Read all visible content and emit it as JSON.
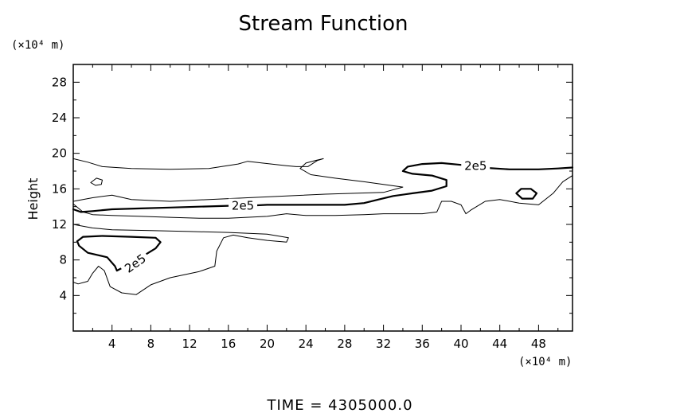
{
  "chart_data": {
    "type": "contour",
    "title": "Stream Function",
    "xlabel": "",
    "ylabel": "Height",
    "x_unit": "(×10⁴ m)",
    "y_unit": "(×10⁴ m)",
    "xlim": [
      0,
      51.5
    ],
    "ylim": [
      0,
      30
    ],
    "x_ticks": [
      4,
      8,
      12,
      16,
      20,
      24,
      28,
      32,
      36,
      40,
      44,
      48
    ],
    "y_ticks": [
      4,
      8,
      12,
      16,
      20,
      24,
      28
    ],
    "grid": false,
    "contour_labels": [
      "2e5",
      "2e5",
      "2e5"
    ],
    "footer": "TIME  =  4305000.0",
    "contours": [
      {
        "level": "thin",
        "width": 1,
        "closed": false,
        "points": [
          [
            0,
            19.4
          ],
          [
            1.5,
            19
          ],
          [
            3,
            18.5
          ],
          [
            6,
            18.3
          ],
          [
            10,
            18.2
          ],
          [
            14,
            18.3
          ],
          [
            17,
            18.8
          ],
          [
            18,
            19.1
          ],
          [
            19.5,
            18.9
          ],
          [
            22,
            18.6
          ],
          [
            23,
            18.5
          ],
          [
            24.2,
            18.5
          ],
          [
            25.2,
            19.2
          ],
          [
            25.8,
            19.4
          ],
          [
            25,
            19.2
          ],
          [
            24,
            18.9
          ],
          [
            23.4,
            18.3
          ],
          [
            24.5,
            17.6
          ],
          [
            27,
            17.2
          ],
          [
            30,
            16.8
          ],
          [
            32,
            16.5
          ],
          [
            34,
            16.2
          ],
          [
            32,
            15.6
          ],
          [
            29,
            15.5
          ],
          [
            26,
            15.4
          ],
          [
            22,
            15.2
          ],
          [
            18,
            15
          ],
          [
            14,
            14.8
          ],
          [
            10,
            14.6
          ],
          [
            6,
            14.8
          ],
          [
            4,
            15.3
          ],
          [
            2,
            15
          ],
          [
            0,
            14.6
          ]
        ]
      },
      {
        "level": "thin",
        "width": 1,
        "closed": true,
        "points": [
          [
            1.8,
            16.7
          ],
          [
            2.4,
            17.2
          ],
          [
            3,
            17
          ],
          [
            2.9,
            16.5
          ],
          [
            2.3,
            16.4
          ],
          [
            1.8,
            16.7
          ]
        ]
      },
      {
        "level": "thick",
        "width": 2.2,
        "closed": false,
        "points": [
          [
            0,
            13.7
          ],
          [
            0.8,
            13.4
          ],
          [
            2,
            13.5
          ],
          [
            4,
            13.7
          ],
          [
            7,
            13.8
          ],
          [
            10,
            13.9
          ],
          [
            13,
            14
          ],
          [
            16,
            14.1
          ],
          [
            18,
            14.1
          ],
          [
            20,
            14.2
          ],
          [
            22,
            14.2
          ],
          [
            25,
            14.2
          ],
          [
            28,
            14.2
          ],
          [
            30,
            14.4
          ],
          [
            31.5,
            14.8
          ],
          [
            33,
            15.2
          ],
          [
            35,
            15.5
          ],
          [
            37,
            15.8
          ],
          [
            38.5,
            16.3
          ],
          [
            38.5,
            17
          ],
          [
            37,
            17.5
          ],
          [
            35,
            17.7
          ],
          [
            34,
            18
          ],
          [
            34.5,
            18.5
          ],
          [
            36,
            18.8
          ],
          [
            38,
            18.9
          ],
          [
            40,
            18.7
          ],
          [
            42,
            18.4
          ],
          [
            45,
            18.2
          ],
          [
            48,
            18.2
          ],
          [
            50,
            18.3
          ],
          [
            51.5,
            18.4
          ]
        ]
      },
      {
        "level": "thick",
        "width": 2.2,
        "closed": true,
        "points": [
          [
            45.7,
            15.5
          ],
          [
            46.2,
            16
          ],
          [
            47.2,
            16
          ],
          [
            47.8,
            15.5
          ],
          [
            47.4,
            14.9
          ],
          [
            46.3,
            14.9
          ],
          [
            45.7,
            15.5
          ]
        ]
      },
      {
        "level": "thin",
        "width": 1,
        "closed": false,
        "points": [
          [
            0,
            14.3
          ],
          [
            1,
            13.4
          ],
          [
            2,
            13.1
          ],
          [
            4,
            13
          ],
          [
            7,
            12.9
          ],
          [
            10,
            12.8
          ],
          [
            13,
            12.7
          ],
          [
            16,
            12.7
          ],
          [
            20,
            12.9
          ],
          [
            22,
            13.2
          ],
          [
            24,
            13
          ],
          [
            27,
            13
          ],
          [
            30,
            13.1
          ],
          [
            32,
            13.2
          ],
          [
            34,
            13.2
          ],
          [
            36,
            13.2
          ],
          [
            37.5,
            13.4
          ],
          [
            38,
            14.6
          ],
          [
            39,
            14.6
          ],
          [
            40,
            14.2
          ],
          [
            40.5,
            13.2
          ],
          [
            41,
            13.6
          ],
          [
            42.5,
            14.6
          ],
          [
            44,
            14.8
          ],
          [
            46,
            14.4
          ],
          [
            48,
            14.2
          ],
          [
            49.5,
            15.5
          ],
          [
            50.5,
            16.8
          ],
          [
            51.5,
            17.5
          ]
        ]
      },
      {
        "level": "thin",
        "width": 1,
        "closed": false,
        "points": [
          [
            0,
            12
          ],
          [
            2,
            11.6
          ],
          [
            4,
            11.4
          ],
          [
            8,
            11.3
          ],
          [
            12,
            11.2
          ],
          [
            16,
            11.1
          ],
          [
            20,
            10.9
          ],
          [
            22.2,
            10.5
          ],
          [
            22,
            10
          ],
          [
            20,
            10.2
          ],
          [
            18,
            10.5
          ],
          [
            16.5,
            10.8
          ],
          [
            15.5,
            10.5
          ],
          [
            14.8,
            9
          ],
          [
            14.6,
            7.3
          ],
          [
            13,
            6.7
          ],
          [
            10,
            6
          ],
          [
            8,
            5.2
          ],
          [
            6.5,
            4.1
          ],
          [
            5,
            4.3
          ],
          [
            3.8,
            5
          ],
          [
            3.2,
            6.8
          ],
          [
            2.6,
            7.3
          ],
          [
            2,
            6.5
          ],
          [
            1.5,
            5.6
          ],
          [
            0.5,
            5.3
          ],
          [
            0,
            5.5
          ]
        ]
      },
      {
        "level": "thick",
        "width": 2.2,
        "closed": false,
        "points": [
          [
            0.4,
            10.1
          ],
          [
            1,
            10.6
          ],
          [
            3,
            10.7
          ],
          [
            6,
            10.6
          ],
          [
            8.5,
            10.5
          ],
          [
            9,
            10
          ],
          [
            8.5,
            9.3
          ],
          [
            7,
            8.3
          ],
          [
            5.2,
            7.2
          ],
          [
            4.5,
            6.8
          ],
          [
            4.3,
            7.3
          ],
          [
            3.5,
            8.3
          ],
          [
            1.5,
            8.8
          ],
          [
            0.6,
            9.6
          ],
          [
            0.4,
            10.1
          ]
        ]
      }
    ],
    "label_positions": [
      {
        "text_index": 0,
        "x": 17.5,
        "y": 14.1,
        "angle": 0
      },
      {
        "text_index": 1,
        "x": 41.5,
        "y": 18.6,
        "angle": 0
      },
      {
        "text_index": 2,
        "x": 6.4,
        "y": 7.6,
        "angle": -35
      }
    ]
  }
}
